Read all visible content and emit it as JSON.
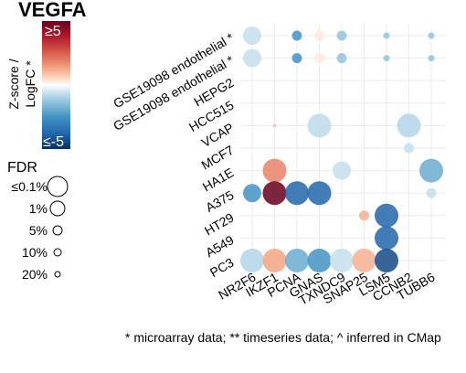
{
  "chart_data": {
    "type": "scatter",
    "subtype": "bubble-matrix",
    "title": "VEGFA",
    "colorbar": {
      "title_lines": [
        "Z-score /",
        "LogFC *"
      ],
      "max_label": "≥5",
      "min_label": "≤-5",
      "range": [
        -5,
        5
      ],
      "high_color": "#67001F",
      "mid_color": "#FFFFFF",
      "low_color": "#053061"
    },
    "size_legend": {
      "title": "FDR",
      "items": [
        {
          "label": "≤0.1%"
        },
        {
          "label": "1%"
        },
        {
          "label": "5%"
        },
        {
          "label": "10%"
        },
        {
          "label": "20%"
        }
      ]
    },
    "x_categories": [
      "NR2F6",
      "IKZF1",
      "PCNA",
      "GNAS",
      "TXNDC9",
      "SNAP25",
      "LSM5",
      "CCNB2",
      "TUBB6"
    ],
    "y_categories": [
      "GSE19098 endothelial *",
      "GSE19098 endothelial *",
      "HEPG2",
      "HCC515",
      "VCAP",
      "MCF7",
      "HA1E",
      "A375",
      "HT29",
      "A549",
      "PC3"
    ],
    "points": [
      {
        "x": "NR2F6",
        "y": 0,
        "z": -1.2,
        "fdr": "1%"
      },
      {
        "x": "PCNA",
        "y": 0,
        "z": -3.0,
        "fdr": "10%"
      },
      {
        "x": "GNAS",
        "y": 0,
        "z": 0.6,
        "fdr": "10%"
      },
      {
        "x": "TXNDC9",
        "y": 0,
        "z": -2.0,
        "fdr": "10%"
      },
      {
        "x": "LSM5",
        "y": 0,
        "z": -2.0,
        "fdr": "20%"
      },
      {
        "x": "TUBB6",
        "y": 0,
        "z": -2.0,
        "fdr": "20%"
      },
      {
        "x": "NR2F6",
        "y": 1,
        "z": -1.2,
        "fdr": "1%"
      },
      {
        "x": "PCNA",
        "y": 1,
        "z": -3.0,
        "fdr": "10%"
      },
      {
        "x": "GNAS",
        "y": 1,
        "z": 0.6,
        "fdr": "10%"
      },
      {
        "x": "TXNDC9",
        "y": 1,
        "z": -2.0,
        "fdr": "10%"
      },
      {
        "x": "LSM5",
        "y": 1,
        "z": -2.0,
        "fdr": "20%"
      },
      {
        "x": "TUBB6",
        "y": 1,
        "z": -2.0,
        "fdr": "20%"
      },
      {
        "x": "IKZF1",
        "y": 4,
        "z": 1.5,
        "fdr": ">20%"
      },
      {
        "x": "GNAS",
        "y": 4,
        "z": -1.3,
        "fdr": "≤0.1%"
      },
      {
        "x": "CCNB2",
        "y": 4,
        "z": -1.5,
        "fdr": "≤0.1%"
      },
      {
        "x": "CCNB2",
        "y": 5,
        "z": -1.2,
        "fdr": "10%"
      },
      {
        "x": "IKZF1",
        "y": 6,
        "z": 2.5,
        "fdr": "≤0.1%"
      },
      {
        "x": "TXNDC9",
        "y": 6,
        "z": -1.2,
        "fdr": "1%"
      },
      {
        "x": "TUBB6",
        "y": 6,
        "z": -2.5,
        "fdr": "≤0.1%"
      },
      {
        "x": "NR2F6",
        "y": 7,
        "z": -3.0,
        "fdr": "1%"
      },
      {
        "x": "IKZF1",
        "y": 7,
        "z": 5.0,
        "fdr": "≤0.1%"
      },
      {
        "x": "PCNA",
        "y": 7,
        "z": -4.0,
        "fdr": "≤0.1%"
      },
      {
        "x": "GNAS",
        "y": 7,
        "z": -4.0,
        "fdr": "≤0.1%"
      },
      {
        "x": "TUBB6",
        "y": 7,
        "z": -1.2,
        "fdr": "10%"
      },
      {
        "x": "SNAP25",
        "y": 8,
        "z": 1.8,
        "fdr": "10%"
      },
      {
        "x": "LSM5",
        "y": 8,
        "z": -4.0,
        "fdr": "≤0.1%"
      },
      {
        "x": "LSM5",
        "y": 9,
        "z": -4.0,
        "fdr": "≤0.1%"
      },
      {
        "x": "NR2F6",
        "y": 10,
        "z": -1.5,
        "fdr": "≤0.1%"
      },
      {
        "x": "IKZF1",
        "y": 10,
        "z": 2.0,
        "fdr": "≤0.1%"
      },
      {
        "x": "PCNA",
        "y": 10,
        "z": -2.5,
        "fdr": "≤0.1%"
      },
      {
        "x": "GNAS",
        "y": 10,
        "z": -3.0,
        "fdr": "≤0.1%"
      },
      {
        "x": "TXNDC9",
        "y": 10,
        "z": -1.2,
        "fdr": "≤0.1%"
      },
      {
        "x": "SNAP25",
        "y": 10,
        "z": 1.8,
        "fdr": "≤0.1%"
      },
      {
        "x": "LSM5",
        "y": 10,
        "z": -4.5,
        "fdr": "≤0.1%"
      }
    ],
    "grid": true,
    "legend_position": "left"
  },
  "footnote": "* microarray data; ** timeseries data; ^ inferred in CMap"
}
